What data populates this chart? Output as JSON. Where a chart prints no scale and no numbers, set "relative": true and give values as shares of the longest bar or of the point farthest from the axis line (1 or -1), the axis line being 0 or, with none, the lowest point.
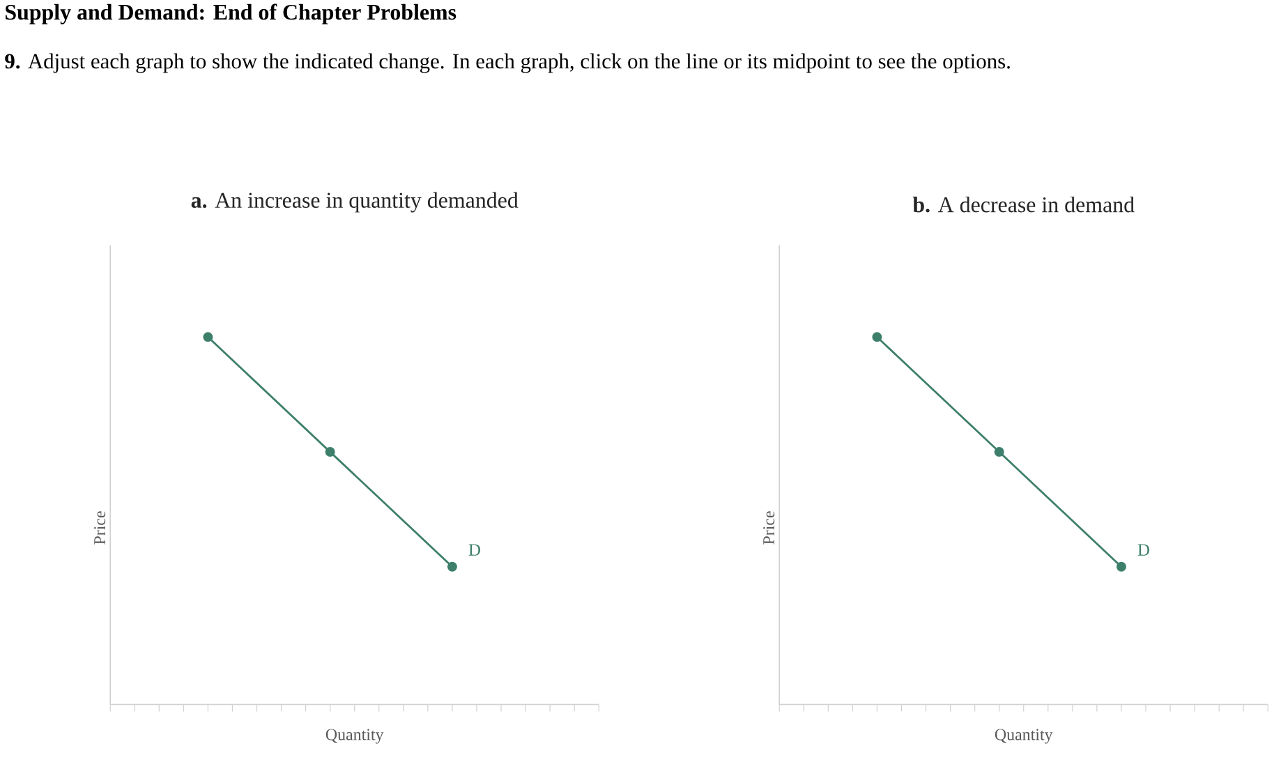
{
  "chart_data": [
    {
      "type": "other",
      "title": "Supply and Demand: End of Chapter Problems",
      "subtitle": "**9.** Adjust each graph to show the indicated change. In each graph, click on the line or its midpoint to see the options."
    },
    {
      "type": "line",
      "title": "**a.** An increase in quantity demanded",
      "xlabel": "Quantity",
      "ylabel": "Price",
      "relative": true,
      "categories": [
        null,
        null,
        null
      ],
      "marker": "circle",
      "line_style": "solid",
      "series": [
        {
          "name": "D",
          "color": "#3d7f6b",
          "values": [
            1,
            0.6875,
            0.375
          ]
        }
      ]
    },
    {
      "type": "line",
      "title": "**b.** A decrease in demand",
      "xlabel": "Quantity",
      "ylabel": "Price",
      "relative": true,
      "categories": [
        null,
        null,
        null
      ],
      "marker": "circle",
      "line_style": "solid",
      "series": [
        {
          "name": "D",
          "color": "#3d7f6b",
          "values": [
            1,
            0.6875,
            0.375
          ]
        }
      ]
    }
  ]
}
